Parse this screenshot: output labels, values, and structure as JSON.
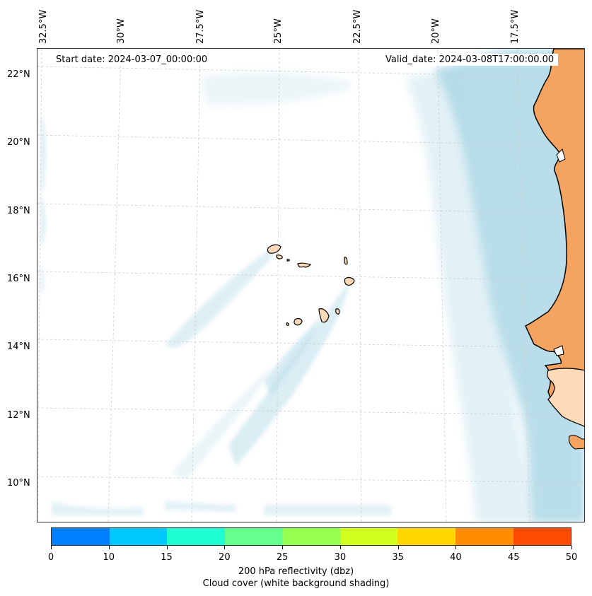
{
  "map": {
    "start_date": "Start date: 2024-03-07_00:00:00",
    "valid_date": "Valid_date: 2024-03-08T17:00:00.00",
    "lon_labels": [
      "32.5°W",
      "30°W",
      "27.5°W",
      "25°W",
      "22.5°W",
      "20°W",
      "17.5°W"
    ],
    "lat_labels": [
      "22°N",
      "20°N",
      "18°N",
      "16°N",
      "14°N",
      "12°N",
      "10°N"
    ],
    "colors": {
      "land_africa": "#f4a460",
      "land_islands": "#ffdab9",
      "cloud": "#add8e6",
      "coastline": "#000000",
      "grid": "#cccccc"
    }
  },
  "colorbar": {
    "ticks": [
      "0",
      "10",
      "15",
      "20",
      "25",
      "30",
      "35",
      "40",
      "45",
      "50"
    ],
    "colors": [
      "#0080ff",
      "#00c8ff",
      "#1effd2",
      "#64ff8c",
      "#96ff50",
      "#d2ff1e",
      "#ffd700",
      "#ff8c00",
      "#ff4b00"
    ],
    "label": "200 hPa reflectivity (dbz)",
    "sublabel": "Cloud cover (white background shading)"
  }
}
